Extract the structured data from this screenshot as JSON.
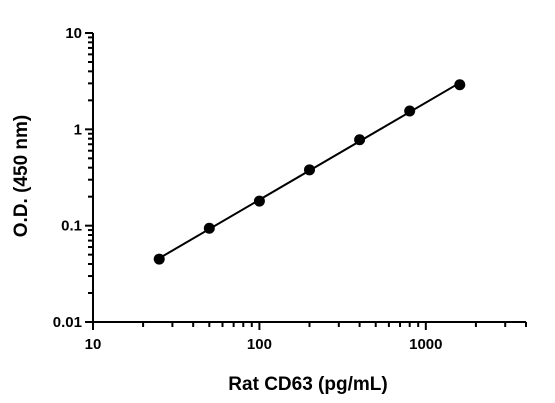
{
  "chart_data": {
    "type": "scatter",
    "title": "",
    "xlabel": "Rat CD63 (pg/mL)",
    "ylabel": "O.D. (450 nm)",
    "x_scale": "log",
    "y_scale": "log",
    "xlim": [
      10,
      4000
    ],
    "ylim": [
      0.01,
      10
    ],
    "x_ticks": [
      10,
      100,
      1000
    ],
    "x_tick_labels": [
      "10",
      "100",
      "1000"
    ],
    "y_ticks": [
      0.01,
      0.1,
      1,
      10
    ],
    "y_tick_labels": [
      "0.01",
      "0.1",
      "1",
      "10"
    ],
    "grid": false,
    "legend": "none",
    "fit_line": true,
    "colors": {
      "points": "#000000",
      "line": "#000000",
      "axes": "#000000"
    },
    "series": [
      {
        "x": [
          25,
          50,
          100,
          200,
          400,
          800,
          1600
        ],
        "y": [
          0.045,
          0.094,
          0.18,
          0.38,
          0.78,
          1.55,
          2.9
        ]
      }
    ]
  }
}
